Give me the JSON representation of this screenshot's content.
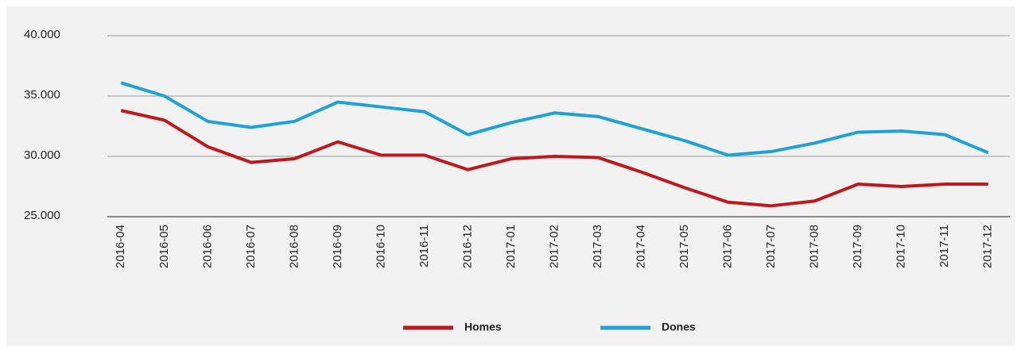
{
  "chart_data": {
    "type": "line",
    "categories": [
      "2016-04",
      "2016-05",
      "2016-06",
      "2016-07",
      "2016-08",
      "2016-09",
      "2016-10",
      "2016-11",
      "2016-12",
      "2017-01",
      "2017-02",
      "2017-03",
      "2017-04",
      "2017-05",
      "2017-06",
      "2017-07",
      "2017-08",
      "2017-09",
      "2017-10",
      "2017-11",
      "2017-12"
    ],
    "series": [
      {
        "name": "Homes",
        "color": "#c0171f",
        "values": [
          33800,
          33000,
          30800,
          29500,
          29800,
          31200,
          30100,
          30100,
          28900,
          29800,
          30000,
          29900,
          28700,
          27400,
          26200,
          25900,
          26300,
          27700,
          27500,
          27700,
          27700
        ]
      },
      {
        "name": "Dones",
        "color": "#1ea1d9",
        "values": [
          36100,
          35000,
          32900,
          32400,
          32900,
          34500,
          34100,
          33700,
          31800,
          32800,
          33600,
          33300,
          32300,
          31300,
          30100,
          30400,
          31100,
          32000,
          32100,
          31800,
          30300
        ]
      }
    ],
    "ylim": [
      25000,
      40000
    ],
    "yticks": [
      {
        "value": 25000,
        "label": "25.000"
      },
      {
        "value": 30000,
        "label": "30.000"
      },
      {
        "value": 35000,
        "label": "35.000"
      },
      {
        "value": 40000,
        "label": "40.000"
      }
    ],
    "grid": true,
    "legend": "bottom"
  }
}
